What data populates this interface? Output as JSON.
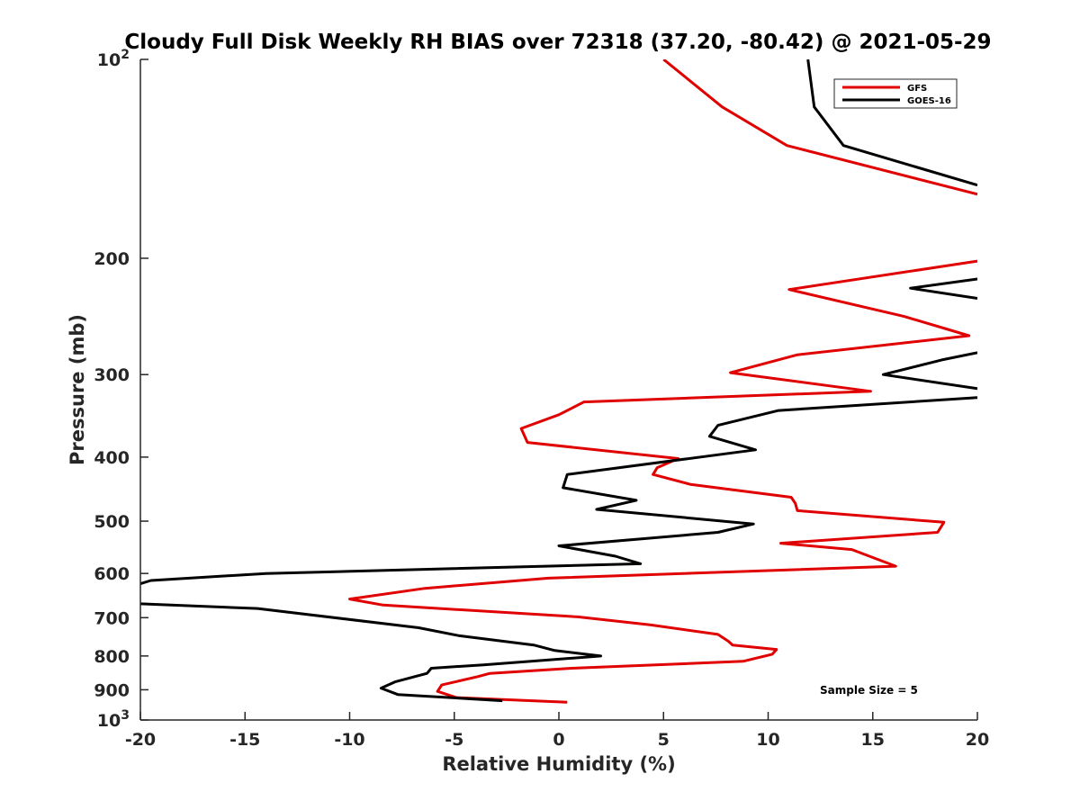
{
  "chart_data": {
    "type": "line",
    "title": "Cloudy Full Disk Weekly RH BIAS over 72318 (37.20, -80.42) @ 2021-05-29",
    "xlabel": "Relative Humidity (%)",
    "ylabel": "Pressure (mb)",
    "xlim": [
      -20,
      20
    ],
    "ylim": [
      100,
      1000
    ],
    "yscale": "log",
    "y_reversed": true,
    "xticks": [
      -20,
      -15,
      -10,
      -5,
      0,
      5,
      10,
      15,
      20
    ],
    "xtick_labels": [
      "-20",
      "-15",
      "-10",
      "-5",
      "0",
      "5",
      "10",
      "15",
      "20"
    ],
    "yticks": [
      {
        "value": 100,
        "label_base": "10",
        "label_exp": "2"
      },
      {
        "value": 200,
        "label_base": "200",
        "label_exp": ""
      },
      {
        "value": 300,
        "label_base": "300",
        "label_exp": ""
      },
      {
        "value": 400,
        "label_base": "400",
        "label_exp": ""
      },
      {
        "value": 500,
        "label_base": "500",
        "label_exp": ""
      },
      {
        "value": 600,
        "label_base": "600",
        "label_exp": ""
      },
      {
        "value": 700,
        "label_base": "700",
        "label_exp": ""
      },
      {
        "value": 800,
        "label_base": "800",
        "label_exp": ""
      },
      {
        "value": 900,
        "label_base": "900",
        "label_exp": ""
      },
      {
        "value": 1000,
        "label_base": "10",
        "label_exp": "3"
      }
    ],
    "legend_position": "top-right",
    "annotation": "Sample Size = 5",
    "series": [
      {
        "name": "GFS",
        "color": "#e00000",
        "points": [
          [
            5.0,
            100
          ],
          [
            7.8,
            118
          ],
          [
            10.9,
            135
          ],
          [
            20.0,
            160
          ],
          [
            null,
            175
          ],
          [
            20.0,
            202
          ],
          [
            11.0,
            223
          ],
          [
            16.5,
            245
          ],
          [
            19.6,
            262
          ],
          [
            11.4,
            280
          ],
          [
            8.2,
            298
          ],
          [
            14.9,
            318
          ],
          [
            1.2,
            330
          ],
          [
            0.0,
            345
          ],
          [
            -1.8,
            362
          ],
          [
            -1.5,
            380
          ],
          [
            5.7,
            402
          ],
          [
            4.7,
            415
          ],
          [
            4.5,
            425
          ],
          [
            6.3,
            440
          ],
          [
            11.1,
            460
          ],
          [
            11.3,
            470
          ],
          [
            11.4,
            482
          ],
          [
            18.4,
            502
          ],
          [
            18.1,
            520
          ],
          [
            10.6,
            540
          ],
          [
            14.0,
            552
          ],
          [
            16.1,
            585
          ],
          [
            -0.5,
            610
          ],
          [
            -6.4,
            632
          ],
          [
            -10.0,
            656
          ],
          [
            -8.4,
            670
          ],
          [
            0.9,
            698
          ],
          [
            4.4,
            718
          ],
          [
            7.6,
            742
          ],
          [
            8.1,
            760
          ],
          [
            8.3,
            770
          ],
          [
            10.4,
            782
          ],
          [
            10.2,
            795
          ],
          [
            8.8,
            815
          ],
          [
            0.6,
            835
          ],
          [
            -3.3,
            850
          ],
          [
            -3.9,
            860
          ],
          [
            -5.6,
            885
          ],
          [
            -5.8,
            905
          ],
          [
            -4.9,
            925
          ],
          [
            0.4,
            940
          ]
        ]
      },
      {
        "name": "GOES-16",
        "color": "#000000",
        "points": [
          [
            11.9,
            100
          ],
          [
            12.2,
            118
          ],
          [
            13.6,
            135
          ],
          [
            20.0,
            155
          ],
          [
            null,
            175
          ],
          [
            20.0,
            215
          ],
          [
            16.8,
            222
          ],
          [
            20.0,
            230
          ],
          [
            null,
            250
          ],
          [
            20.0,
            278
          ],
          [
            18.3,
            285
          ],
          [
            15.5,
            300
          ],
          [
            20.0,
            315
          ],
          [
            null,
            320
          ],
          [
            20.0,
            325
          ],
          [
            10.5,
            340
          ],
          [
            7.6,
            358
          ],
          [
            7.2,
            372
          ],
          [
            9.4,
            390
          ],
          [
            0.4,
            425
          ],
          [
            0.2,
            445
          ],
          [
            3.7,
            465
          ],
          [
            1.8,
            480
          ],
          [
            9.3,
            505
          ],
          [
            7.6,
            520
          ],
          [
            0.0,
            545
          ],
          [
            2.7,
            565
          ],
          [
            3.9,
            580
          ],
          [
            -14.0,
            600
          ],
          [
            -19.5,
            615
          ],
          [
            -20.0,
            622
          ],
          [
            null,
            645
          ],
          [
            -20.0,
            667
          ],
          [
            -14.4,
            678
          ],
          [
            -6.7,
            725
          ],
          [
            -4.8,
            745
          ],
          [
            -1.2,
            770
          ],
          [
            -0.2,
            785
          ],
          [
            2.0,
            800
          ],
          [
            -3.6,
            825
          ],
          [
            -6.1,
            835
          ],
          [
            -6.3,
            850
          ],
          [
            -7.8,
            875
          ],
          [
            -8.5,
            895
          ],
          [
            -7.7,
            915
          ],
          [
            -2.7,
            935
          ]
        ]
      }
    ]
  }
}
